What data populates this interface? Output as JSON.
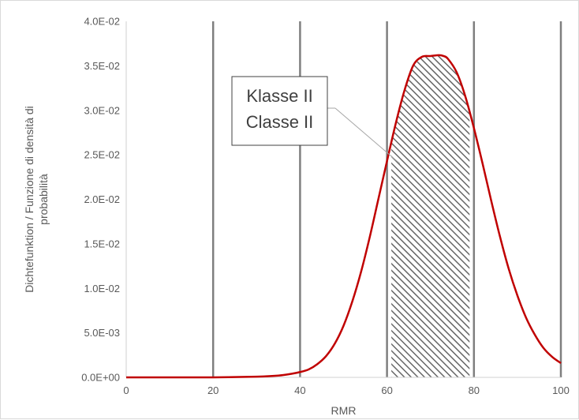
{
  "chart_data": {
    "type": "line",
    "title": "",
    "xlabel": "RMR",
    "ylabel_lines": [
      "Dichtefunktion / Funzione di densità di",
      "probabilità"
    ],
    "xlim": [
      0,
      100
    ],
    "ylim": [
      0,
      0.04
    ],
    "x_ticks": [
      0,
      20,
      40,
      60,
      80,
      100
    ],
    "x_tick_labels": [
      "0",
      "20",
      "40",
      "60",
      "80",
      "100"
    ],
    "y_ticks": [
      0,
      0.005,
      0.01,
      0.015,
      0.02,
      0.025,
      0.03,
      0.035,
      0.04
    ],
    "y_tick_labels": [
      "0.0E+00",
      "5.0E-03",
      "1.0E-02",
      "1.5E-02",
      "2.0E-02",
      "2.5E-02",
      "3.0E-02",
      "3.5E-02",
      "4.0E-02"
    ],
    "vertical_gridlines": [
      20,
      40,
      60,
      80,
      100
    ],
    "grid": "vertical",
    "legend": "none",
    "series": [
      {
        "color": "#c00000",
        "x": [
          0,
          10,
          20,
          30,
          35,
          38,
          40,
          42,
          44,
          46,
          48,
          50,
          52,
          54,
          56,
          58,
          60,
          62,
          64,
          66,
          68,
          70,
          72,
          73,
          74,
          76,
          78,
          80,
          82,
          84,
          86,
          88,
          90,
          92,
          94,
          96,
          98,
          100
        ],
        "values": [
          0,
          0,
          0,
          8e-05,
          0.0002,
          0.0004,
          0.0006,
          0.0009,
          0.0015,
          0.0024,
          0.0038,
          0.0058,
          0.0085,
          0.0118,
          0.0157,
          0.02,
          0.0243,
          0.0285,
          0.0322,
          0.035,
          0.036,
          0.0361,
          0.0362,
          0.0361,
          0.0358,
          0.0343,
          0.0316,
          0.028,
          0.024,
          0.0198,
          0.0158,
          0.0122,
          0.0092,
          0.0067,
          0.0048,
          0.0033,
          0.0023,
          0.0016
        ]
      }
    ],
    "shaded_region": {
      "x_from": 61,
      "x_to": 79,
      "pattern": "diagonal-hatch",
      "color": "#555555"
    },
    "annotation": {
      "lines": [
        "Klasse II",
        "Classe II"
      ],
      "points_to": {
        "x": 63,
        "y": 0.024
      }
    }
  }
}
